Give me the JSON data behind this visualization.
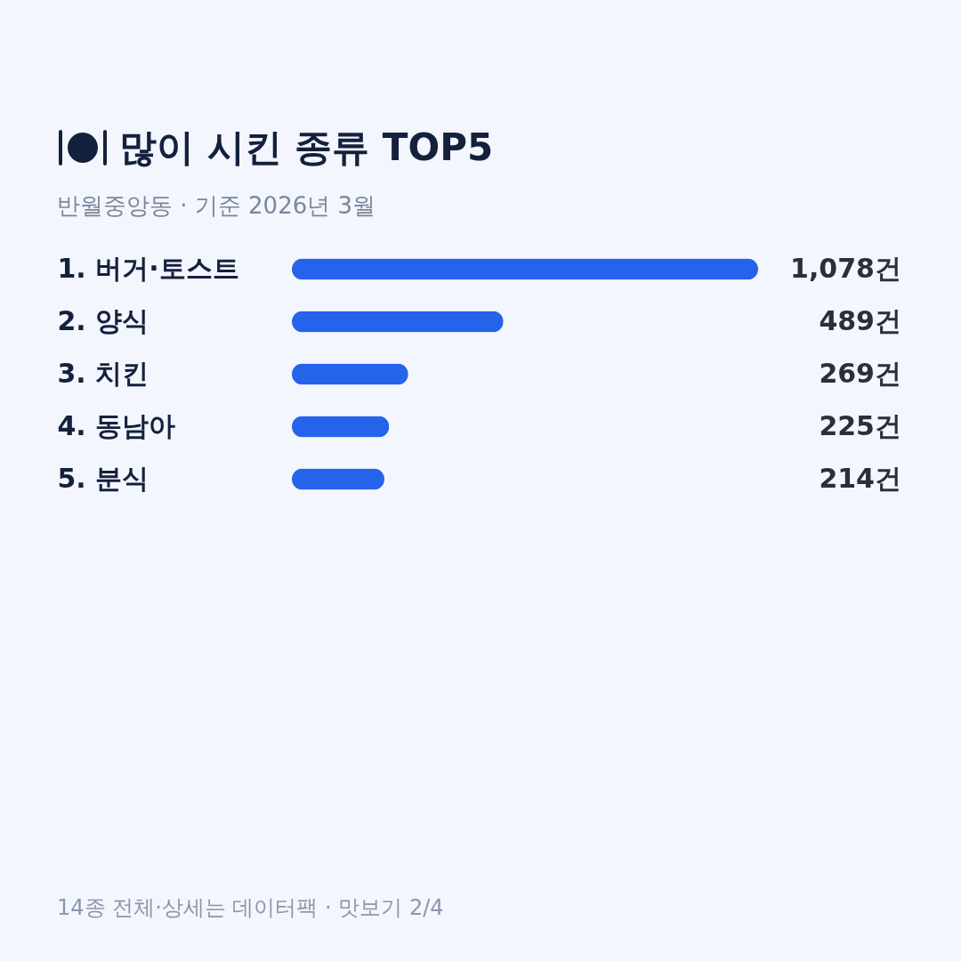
{
  "chart_data": {
    "type": "bar",
    "orientation": "horizontal",
    "title": "많이 시킨 종류 TOP5",
    "subtitle": "반월중앙동 · 기준 2026년 3월",
    "categories": [
      "1.  버거·토스트",
      "2.  양식",
      "3.  치킨",
      "4.  동남아",
      "5.  분식"
    ],
    "values": [
      1078,
      489,
      269,
      225,
      214
    ],
    "value_labels": [
      "1,078건",
      "489건",
      "269건",
      "225건",
      "214건"
    ],
    "color": "#2563eb",
    "xlim": [
      0,
      1078
    ],
    "tick_labels": "y",
    "annotations": [
      "14종 전체·상세는 데이터팩 · 맛보기 2/4"
    ]
  }
}
